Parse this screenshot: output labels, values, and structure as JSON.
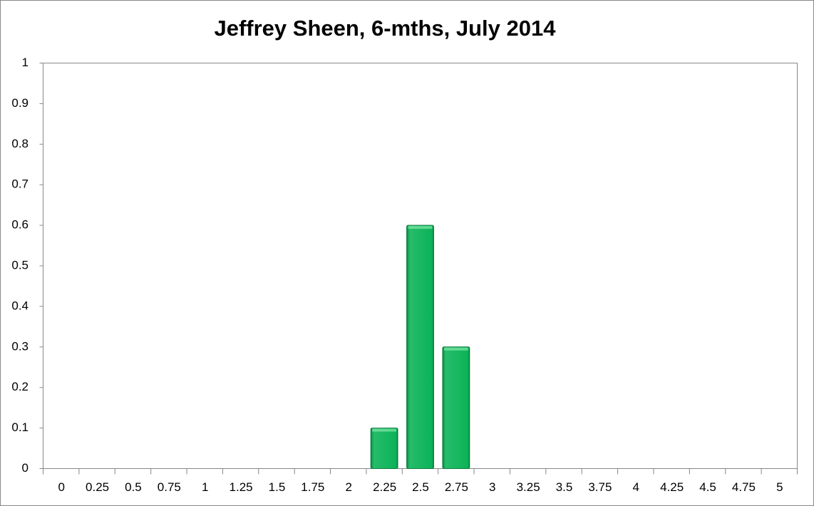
{
  "chart_data": {
    "type": "bar",
    "title": "Jeffrey Sheen, 6-mths, July 2014",
    "categories": [
      "0",
      "0.25",
      "0.5",
      "0.75",
      "1",
      "1.25",
      "1.5",
      "1.75",
      "2",
      "2.25",
      "2.5",
      "2.75",
      "3",
      "3.25",
      "3.5",
      "3.75",
      "4",
      "4.25",
      "4.5",
      "4.75",
      "5"
    ],
    "values": [
      0,
      0,
      0,
      0,
      0,
      0,
      0,
      0,
      0,
      0.1,
      0.6,
      0.3,
      0,
      0,
      0,
      0,
      0,
      0,
      0,
      0,
      0
    ],
    "color": "#00b050",
    "ylim": [
      0,
      1
    ],
    "yticks": [
      0,
      0.1,
      0.2,
      0.3,
      0.4,
      0.5,
      0.6,
      0.7,
      0.8,
      0.9,
      1
    ],
    "grid": false
  }
}
